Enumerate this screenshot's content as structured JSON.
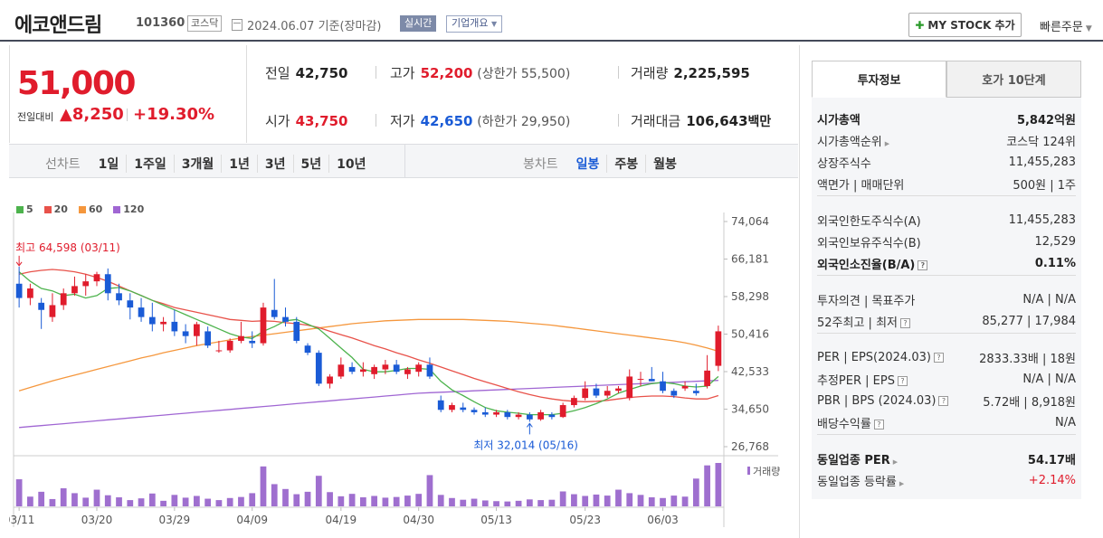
{
  "header": {
    "name": "에코앤드림",
    "code": "101360",
    "market": "코스닥",
    "date": "2024.06.07  기준(장마감)",
    "realtime": "실시간",
    "company": "기업개요",
    "mystock": "MY STOCK 추가",
    "quick_order": "빠른주문"
  },
  "price": {
    "current": "51,000",
    "diff_label": "전일대비",
    "diff_value": "▲8,250",
    "diff_pct": "+19.30%",
    "prev_label": "전일",
    "prev": "42,750",
    "high_label": "고가",
    "high": "52,200",
    "upper_limit": "(상한가 55,500)",
    "volume_label": "거래량",
    "volume": "2,225,595",
    "open_label": "시가",
    "open": "43,750",
    "low_label": "저가",
    "low": "42,650",
    "lower_limit": "(하한가 29,950)",
    "amount_label": "거래대금",
    "amount": "106,643",
    "amount_unit": "백만"
  },
  "toolbar": {
    "line_label": "선차트",
    "line_opts": [
      "1일",
      "1주일",
      "3개월",
      "1년",
      "3년",
      "5년",
      "10년"
    ],
    "candle_label": "봉차트",
    "candle_opts": [
      "일봉",
      "주봉",
      "월봉"
    ]
  },
  "colors": {
    "up": "#e01c2c",
    "down": "#1a5bd6",
    "ma5": "#4db34d",
    "ma20": "#e8524a",
    "ma60": "#f5973d",
    "ma120": "#a066d3",
    "volume": "#9f6fcf"
  },
  "chart_data": {
    "type": "candlestick",
    "legend": [
      "5",
      "20",
      "60",
      "120"
    ],
    "y_ticks": [
      "74,064",
      "66,181",
      "58,298",
      "50,416",
      "42,533",
      "34,650",
      "26,768"
    ],
    "ylim": [
      26768,
      74064
    ],
    "x_ticks": [
      "03/11",
      "03/20",
      "03/29",
      "04/09",
      "04/19",
      "04/30",
      "05/13",
      "05/23",
      "06/03"
    ],
    "x_tick_index": [
      0,
      7,
      14,
      21,
      29,
      36,
      43,
      51,
      58
    ],
    "high_marker": "최고 64,598 (03/11)",
    "low_marker": "최저 32,014 (05/16)",
    "volume_label": "거래량",
    "candles": [
      [
        61000,
        64598,
        56000,
        58000
      ],
      [
        58000,
        61000,
        56500,
        60000
      ],
      [
        57000,
        58000,
        51500,
        55500
      ],
      [
        54000,
        59000,
        53000,
        56500
      ],
      [
        56500,
        60000,
        55500,
        59000
      ],
      [
        59000,
        62500,
        58500,
        60500
      ],
      [
        60500,
        63000,
        58500,
        61500
      ],
      [
        61500,
        63500,
        60500,
        63000
      ],
      [
        63000,
        64200,
        57500,
        59000
      ],
      [
        59000,
        61000,
        56500,
        57500
      ],
      [
        57500,
        59000,
        53500,
        56000
      ],
      [
        56000,
        58000,
        53000,
        54000
      ],
      [
        54000,
        57000,
        51000,
        52500
      ],
      [
        52500,
        54000,
        51000,
        53000
      ],
      [
        53000,
        55500,
        50000,
        51000
      ],
      [
        51000,
        52500,
        48500,
        50000
      ],
      [
        50000,
        53000,
        48000,
        52500
      ],
      [
        51000,
        52000,
        47500,
        48000
      ],
      [
        47000,
        49000,
        46500,
        47000
      ],
      [
        47000,
        49500,
        46500,
        49000
      ],
      [
        49000,
        53000,
        48500,
        50000
      ],
      [
        49000,
        51000,
        47500,
        48500
      ],
      [
        48500,
        57000,
        48000,
        56000
      ],
      [
        55500,
        62000,
        53500,
        54000
      ],
      [
        54000,
        56000,
        52000,
        53000
      ],
      [
        53000,
        54000,
        48500,
        49000
      ],
      [
        48000,
        48500,
        46000,
        46500
      ],
      [
        46500,
        47000,
        39500,
        40000
      ],
      [
        40000,
        42000,
        39000,
        41500
      ],
      [
        41500,
        45500,
        41000,
        44000
      ],
      [
        43500,
        44500,
        42000,
        42500
      ],
      [
        42500,
        44500,
        41500,
        43000
      ],
      [
        42000,
        44000,
        41000,
        43500
      ],
      [
        43000,
        45000,
        42000,
        44000
      ],
      [
        44000,
        45000,
        42000,
        42500
      ],
      [
        42000,
        43500,
        41000,
        43000
      ],
      [
        42500,
        44500,
        41500,
        44000
      ],
      [
        44000,
        45500,
        41000,
        41500
      ],
      [
        36500,
        37500,
        34000,
        34500
      ],
      [
        34500,
        36000,
        34000,
        35500
      ],
      [
        35000,
        36000,
        34000,
        34500
      ],
      [
        34500,
        35000,
        33500,
        34000
      ],
      [
        34000,
        35000,
        33000,
        33500
      ],
      [
        33500,
        34500,
        33000,
        34000
      ],
      [
        34000,
        34500,
        32500,
        33000
      ],
      [
        33000,
        34000,
        32500,
        33500
      ],
      [
        33500,
        34000,
        32014,
        32500
      ],
      [
        32500,
        34500,
        32200,
        34000
      ],
      [
        33500,
        34000,
        32500,
        33000
      ],
      [
        33000,
        36000,
        32800,
        35500
      ],
      [
        35500,
        37500,
        35000,
        37000
      ],
      [
        37000,
        40500,
        36500,
        39000
      ],
      [
        39000,
        40000,
        37000,
        37500
      ],
      [
        37500,
        39500,
        37000,
        38500
      ],
      [
        38500,
        39500,
        38000,
        39000
      ],
      [
        37000,
        43000,
        36500,
        41500
      ],
      [
        41000,
        42500,
        39500,
        41000
      ],
      [
        41000,
        43500,
        40500,
        40500
      ],
      [
        40500,
        42500,
        38000,
        38500
      ],
      [
        38500,
        39000,
        37000,
        37500
      ],
      [
        39000,
        40500,
        38500,
        39500
      ],
      [
        38500,
        40000,
        37500,
        38000
      ],
      [
        39500,
        46000,
        39000,
        42750
      ],
      [
        43750,
        52200,
        42650,
        51000
      ]
    ],
    "volumes": [
      780,
      280,
      420,
      210,
      520,
      380,
      250,
      480,
      320,
      260,
      180,
      230,
      370,
      160,
      330,
      250,
      300,
      220,
      180,
      240,
      270,
      380,
      1150,
      640,
      500,
      350,
      420,
      880,
      410,
      290,
      360,
      260,
      300,
      250,
      270,
      310,
      360,
      900,
      330,
      240,
      190,
      220,
      170,
      150,
      140,
      160,
      200,
      180,
      190,
      430,
      350,
      300,
      340,
      310,
      480,
      380,
      330,
      260,
      240,
      310,
      280,
      800,
      1180,
      1250
    ],
    "ma5": [
      63500,
      61500,
      60000,
      59500,
      58500,
      58800,
      58000,
      58500,
      60000,
      60200,
      59500,
      58500,
      57500,
      56500,
      55500,
      54500,
      53500,
      52500,
      51500,
      50500,
      49800,
      49500,
      51000,
      52000,
      53200,
      53500,
      52500,
      51500,
      49500,
      47500,
      45500,
      43000,
      42500,
      42500,
      42800,
      43200,
      43200,
      43000,
      40500,
      38700,
      37500,
      36200,
      35000,
      34300,
      34000,
      33800,
      33500,
      33500,
      33500,
      33800,
      34300,
      35000,
      35800,
      36800,
      38000,
      38800,
      39500,
      40000,
      40300,
      40000,
      39500,
      39300,
      39500,
      41500
    ],
    "ma20": [
      63000,
      63500,
      63800,
      64000,
      63800,
      63500,
      63000,
      62300,
      61500,
      60500,
      59500,
      58500,
      57500,
      56800,
      56000,
      55500,
      55000,
      54500,
      54000,
      53500,
      53300,
      53100,
      53200,
      53100,
      52800,
      52600,
      52300,
      51800,
      51000,
      50300,
      49600,
      48800,
      48000,
      47300,
      46500,
      45800,
      45000,
      44300,
      43500,
      42700,
      41900,
      41100,
      40400,
      39700,
      39000,
      38300,
      37700,
      37200,
      36800,
      36500,
      36300,
      36200,
      36300,
      36500,
      36800,
      37100,
      37300,
      37400,
      37400,
      37300,
      37000,
      36800,
      36800,
      37500
    ],
    "ma60": [
      38500,
      39200,
      39900,
      40600,
      41200,
      41800,
      42400,
      43000,
      43600,
      44200,
      44800,
      45400,
      45900,
      46500,
      47000,
      47500,
      48000,
      48400,
      48800,
      49200,
      49600,
      49900,
      50200,
      50500,
      50800,
      51100,
      51400,
      51700,
      52000,
      52300,
      52600,
      52800,
      53000,
      53200,
      53300,
      53400,
      53500,
      53500,
      53500,
      53500,
      53500,
      53400,
      53300,
      53200,
      53100,
      52900,
      52700,
      52500,
      52300,
      52000,
      51700,
      51400,
      51100,
      50800,
      50500,
      50200,
      49900,
      49600,
      49300,
      49000,
      48600,
      48100,
      47500,
      46800
    ],
    "ma120": [
      30800,
      31000,
      31200,
      31400,
      31600,
      31800,
      32000,
      32200,
      32400,
      32600,
      32800,
      33000,
      33200,
      33400,
      33600,
      33800,
      34000,
      34200,
      34400,
      34600,
      34800,
      35000,
      35200,
      35400,
      35600,
      35800,
      36000,
      36200,
      36400,
      36600,
      36800,
      37000,
      37200,
      37400,
      37600,
      37800,
      38000,
      38100,
      38200,
      38300,
      38400,
      38500,
      38600,
      38700,
      38800,
      38900,
      39000,
      39100,
      39200,
      39300,
      39400,
      39500,
      39600,
      39700,
      39800,
      39900,
      40000,
      40100,
      40200,
      40300,
      40400,
      40500,
      40600,
      40700
    ]
  },
  "side": {
    "tabs": [
      "투자정보",
      "호가 10단계"
    ],
    "rows": [
      {
        "k": "시가총액",
        "v": "5,842억원"
      },
      {
        "k": "시가총액순위",
        "v": "코스닥 124위"
      },
      {
        "k": "상장주식수",
        "v": "11,455,283"
      },
      {
        "k": "액면가 | 매매단위",
        "v": "500원 | 1주"
      },
      {
        "k": "외국인한도주식수(A)",
        "v": "11,455,283"
      },
      {
        "k": "외국인보유주식수(B)",
        "v": "12,529"
      },
      {
        "k": "외국인소진율(B/A)",
        "v": "0.11%"
      },
      {
        "k": "투자의견 | 목표주가",
        "v": "N/A | N/A"
      },
      {
        "k": "52주최고 | 최저",
        "v": "85,277 | 17,984"
      },
      {
        "k": "PER | EPS(2024.03)",
        "v": "2833.33배 | 18원"
      },
      {
        "k": "추정PER | EPS",
        "v": "N/A | N/A"
      },
      {
        "k": "PBR | BPS (2024.03)",
        "v": "5.72배 | 8,918원"
      },
      {
        "k": "배당수익률",
        "v": "N/A"
      },
      {
        "k": "동일업종 PER",
        "v": "54.17배"
      },
      {
        "k": "동일업종 등락률",
        "v": "+2.14%"
      }
    ]
  }
}
